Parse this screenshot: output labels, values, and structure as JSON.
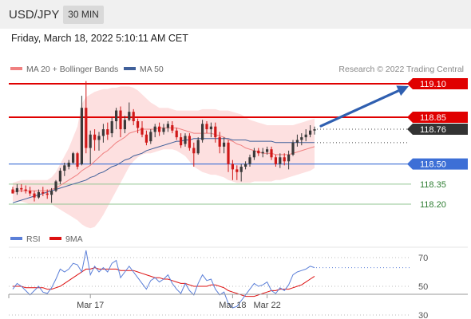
{
  "header": {
    "symbol": "USD/JPY",
    "timeframe": "30 MIN",
    "datetime": "Friday, March 18, 2022 5:10:11 AM CET"
  },
  "legend": {
    "ma20_bb": "MA 20 + Bollinger Bands",
    "ma50": "MA 50",
    "credit": "Research © 2022 Trading Central"
  },
  "colors": {
    "up_candle": "#3a3a3a",
    "down_candle": "#d01818",
    "resistance": "#e00000",
    "support_blue": "#3d6fd6",
    "support_green": "#92c592",
    "ma20": "#f08080",
    "ma50": "#40609a",
    "bands": "#fde0e0",
    "rsi": "#5b7fd8",
    "rsi_ma": "#dd1111",
    "price_box": "#333333",
    "arrow": "#2f5fb0"
  },
  "chart_data": {
    "type": "candlestick",
    "symbol": "USD/JPY",
    "timeframe": "30 MIN",
    "last_price": 118.76,
    "y_range": [
      118.1,
      119.15
    ],
    "levels": [
      {
        "value": 119.1,
        "label": "119.10",
        "kind": "resistance"
      },
      {
        "value": 118.85,
        "label": "118.85",
        "kind": "resistance"
      },
      {
        "value": 118.5,
        "label": "118.50",
        "kind": "pivot"
      },
      {
        "value": 118.35,
        "label": "118.35",
        "kind": "support"
      },
      {
        "value": 118.2,
        "label": "118.20",
        "kind": "support"
      }
    ],
    "x_ticks": [
      {
        "index": 18,
        "label": "Mar 17"
      },
      {
        "index": 51,
        "label": "Mar 18"
      },
      {
        "index": 59,
        "label": "Mar 22"
      }
    ],
    "projection": {
      "from": 118.76,
      "to": 119.1
    },
    "candles": [
      [
        118.31,
        118.33,
        118.28,
        118.28
      ],
      [
        118.29,
        118.35,
        118.27,
        118.32
      ],
      [
        118.32,
        118.35,
        118.29,
        118.31
      ],
      [
        118.31,
        118.34,
        118.28,
        118.3
      ],
      [
        118.3,
        118.33,
        118.26,
        118.28
      ],
      [
        118.28,
        118.3,
        118.22,
        118.25
      ],
      [
        118.25,
        118.31,
        118.24,
        118.29
      ],
      [
        118.29,
        118.33,
        118.26,
        118.28
      ],
      [
        118.28,
        118.31,
        118.24,
        118.27
      ],
      [
        118.27,
        118.32,
        118.21,
        118.3
      ],
      [
        118.3,
        118.38,
        118.29,
        118.37
      ],
      [
        118.37,
        118.47,
        118.35,
        118.45
      ],
      [
        118.45,
        118.51,
        118.41,
        118.49
      ],
      [
        118.48,
        118.53,
        118.46,
        118.51
      ],
      [
        118.51,
        118.59,
        118.5,
        118.58
      ],
      [
        118.58,
        118.59,
        118.46,
        118.48
      ],
      [
        118.5,
        119.01,
        118.49,
        118.92
      ],
      [
        118.92,
        119.12,
        118.58,
        118.62
      ],
      [
        118.62,
        118.75,
        118.5,
        118.72
      ],
      [
        118.72,
        118.76,
        118.6,
        118.68
      ],
      [
        118.68,
        118.74,
        118.6,
        118.71
      ],
      [
        118.71,
        118.8,
        118.66,
        118.76
      ],
      [
        118.76,
        118.81,
        118.68,
        118.72
      ],
      [
        118.73,
        118.85,
        118.7,
        118.82
      ],
      [
        118.82,
        118.92,
        118.76,
        118.9
      ],
      [
        118.9,
        118.93,
        118.7,
        118.76
      ],
      [
        118.76,
        118.86,
        118.73,
        118.83
      ],
      [
        118.83,
        118.96,
        118.82,
        118.89
      ],
      [
        118.89,
        118.91,
        118.79,
        118.82
      ],
      [
        118.82,
        118.84,
        118.73,
        118.77
      ],
      [
        118.77,
        118.82,
        118.7,
        118.72
      ],
      [
        118.72,
        118.75,
        118.64,
        118.66
      ],
      [
        118.67,
        118.76,
        118.65,
        118.74
      ],
      [
        118.74,
        118.8,
        118.7,
        118.78
      ],
      [
        118.78,
        118.81,
        118.71,
        118.74
      ],
      [
        118.74,
        118.8,
        118.72,
        118.77
      ],
      [
        118.77,
        118.82,
        118.74,
        118.8
      ],
      [
        118.79,
        118.82,
        118.73,
        118.75
      ],
      [
        118.75,
        118.77,
        118.68,
        118.7
      ],
      [
        118.7,
        118.73,
        118.62,
        118.64
      ],
      [
        118.65,
        118.73,
        118.63,
        118.71
      ],
      [
        118.71,
        118.73,
        118.6,
        118.62
      ],
      [
        118.62,
        118.66,
        118.48,
        118.58
      ],
      [
        118.58,
        118.7,
        118.57,
        118.68
      ],
      [
        118.68,
        118.83,
        118.66,
        118.8
      ],
      [
        118.8,
        118.82,
        118.73,
        118.76
      ],
      [
        118.76,
        118.81,
        118.7,
        118.78
      ],
      [
        118.78,
        118.81,
        118.66,
        118.7
      ],
      [
        118.7,
        118.74,
        118.58,
        118.63
      ],
      [
        118.63,
        118.7,
        118.58,
        118.66
      ],
      [
        118.66,
        118.68,
        118.44,
        118.5
      ],
      [
        118.5,
        118.53,
        118.38,
        118.46
      ],
      [
        118.46,
        118.49,
        118.38,
        118.44
      ],
      [
        118.44,
        118.5,
        118.37,
        118.48
      ],
      [
        118.48,
        118.52,
        118.46,
        118.5
      ],
      [
        118.5,
        118.57,
        118.48,
        118.55
      ],
      [
        118.55,
        118.62,
        118.53,
        118.6
      ],
      [
        118.6,
        118.62,
        118.56,
        118.58
      ],
      [
        118.58,
        118.62,
        118.55,
        118.59
      ],
      [
        118.59,
        118.63,
        118.57,
        118.61
      ],
      [
        118.61,
        118.63,
        118.53,
        118.55
      ],
      [
        118.55,
        118.57,
        118.48,
        118.5
      ],
      [
        118.5,
        118.58,
        118.47,
        118.55
      ],
      [
        118.55,
        118.58,
        118.49,
        118.52
      ],
      [
        118.52,
        118.6,
        118.46,
        118.57
      ],
      [
        118.57,
        118.68,
        118.56,
        118.66
      ],
      [
        118.66,
        118.72,
        118.63,
        118.68
      ],
      [
        118.68,
        118.73,
        118.64,
        118.7
      ],
      [
        118.7,
        118.76,
        118.67,
        118.72
      ],
      [
        118.72,
        118.79,
        118.7,
        118.75
      ],
      [
        118.75,
        118.78,
        118.72,
        118.76
      ]
    ],
    "ma20": [
      118.29,
      118.3,
      118.3,
      118.3,
      118.3,
      118.3,
      118.3,
      118.3,
      118.3,
      118.31,
      118.32,
      118.34,
      118.36,
      118.38,
      118.4,
      118.42,
      118.45,
      118.47,
      118.49,
      118.52,
      118.55,
      118.58,
      118.6,
      118.63,
      118.66,
      118.68,
      118.7,
      118.73,
      118.74,
      118.75,
      118.76,
      118.76,
      118.76,
      118.76,
      118.77,
      118.77,
      118.77,
      118.77,
      118.77,
      118.76,
      118.75,
      118.74,
      118.73,
      118.73,
      118.73,
      118.73,
      118.73,
      118.72,
      118.71,
      118.7,
      118.68,
      118.67,
      118.65,
      118.64,
      118.62,
      118.61,
      118.6,
      118.59,
      118.58,
      118.58,
      118.58,
      118.57,
      118.57,
      118.57,
      118.57,
      118.58,
      118.59,
      118.6,
      118.61,
      118.62,
      118.63
    ],
    "ma50": [
      118.21,
      118.22,
      118.23,
      118.24,
      118.25,
      118.26,
      118.27,
      118.28,
      118.29,
      118.3,
      118.31,
      118.32,
      118.33,
      118.34,
      118.35,
      118.36,
      118.37,
      118.38,
      118.4,
      118.41,
      118.43,
      118.44,
      118.46,
      118.48,
      118.49,
      118.51,
      118.53,
      118.54,
      118.56,
      118.57,
      118.58,
      118.6,
      118.61,
      118.62,
      118.63,
      118.64,
      118.65,
      118.66,
      118.67,
      118.67,
      118.68,
      118.68,
      118.69,
      118.69,
      118.69,
      118.69,
      118.69,
      118.69,
      118.69,
      118.69,
      118.69,
      118.68,
      118.68,
      118.68,
      118.68,
      118.67,
      118.67,
      118.67,
      118.67,
      118.67,
      118.67,
      118.66,
      118.66,
      118.66,
      118.66,
      118.66,
      118.66,
      118.66,
      118.66,
      118.66,
      118.66
    ],
    "bb_upper": [
      118.36,
      118.37,
      118.38,
      118.38,
      118.38,
      118.38,
      118.38,
      118.38,
      118.38,
      118.4,
      118.44,
      118.5,
      118.56,
      118.62,
      118.7,
      118.78,
      118.95,
      119.0,
      119.02,
      119.04,
      119.05,
      119.06,
      119.06,
      119.07,
      119.07,
      119.08,
      119.08,
      119.08,
      119.07,
      119.05,
      119.02,
      118.99,
      118.96,
      118.94,
      118.92,
      118.92,
      118.92,
      118.91,
      118.9,
      118.9,
      118.9,
      118.9,
      118.9,
      118.9,
      118.91,
      118.91,
      118.91,
      118.91,
      118.9,
      118.9,
      118.9,
      118.89,
      118.88,
      118.87,
      118.85,
      118.83,
      118.82,
      118.81,
      118.8,
      118.79,
      118.79,
      118.79,
      118.79,
      118.79,
      118.79,
      118.79,
      118.8,
      118.81,
      118.82,
      118.83,
      118.84
    ],
    "bb_lower": [
      118.22,
      118.22,
      118.22,
      118.21,
      118.2,
      118.2,
      118.2,
      118.2,
      118.2,
      118.2,
      118.18,
      118.16,
      118.14,
      118.12,
      118.1,
      118.08,
      118.05,
      118.03,
      118.02,
      118.03,
      118.07,
      118.12,
      118.18,
      118.24,
      118.3,
      118.36,
      118.42,
      118.48,
      118.52,
      118.55,
      118.57,
      118.58,
      118.58,
      118.59,
      118.6,
      118.61,
      118.61,
      118.61,
      118.6,
      118.58,
      118.56,
      118.52,
      118.48,
      118.46,
      118.44,
      118.43,
      118.42,
      118.42,
      118.41,
      118.4,
      118.38,
      118.37,
      118.36,
      118.36,
      118.36,
      118.36,
      118.37,
      118.37,
      118.37,
      118.37,
      118.37,
      118.38,
      118.38,
      118.39,
      118.4,
      118.41,
      118.42,
      118.43,
      118.44,
      118.45,
      118.47
    ],
    "rsi_panel": {
      "legend": [
        "RSI",
        "9MA"
      ],
      "levels": [
        70,
        50,
        30
      ],
      "y_range": [
        20,
        80
      ],
      "rsi": [
        48,
        52,
        50,
        47,
        44,
        47,
        50,
        46,
        45,
        49,
        55,
        62,
        60,
        62,
        66,
        65,
        60,
        75,
        58,
        64,
        60,
        63,
        60,
        66,
        68,
        56,
        60,
        64,
        60,
        56,
        52,
        48,
        54,
        56,
        53,
        55,
        58,
        52,
        48,
        45,
        52,
        47,
        44,
        52,
        58,
        54,
        55,
        48,
        44,
        46,
        38,
        35,
        36,
        40,
        44,
        48,
        52,
        50,
        51,
        53,
        47,
        45,
        49,
        47,
        51,
        58,
        60,
        61,
        62,
        64,
        63
      ],
      "rsi_ma": [
        50,
        50,
        50,
        49,
        49,
        49,
        49,
        49,
        48,
        48,
        49,
        50,
        52,
        54,
        56,
        58,
        60,
        62,
        62,
        63,
        62,
        62,
        62,
        62,
        62,
        61,
        61,
        61,
        61,
        60,
        59,
        58,
        57,
        56,
        56,
        55,
        55,
        54,
        53,
        52,
        52,
        51,
        50,
        50,
        50,
        50,
        51,
        51,
        50,
        49,
        47,
        46,
        45,
        44,
        43,
        43,
        43,
        44,
        45,
        46,
        47,
        47,
        48,
        48,
        48,
        49,
        50,
        51,
        53,
        55,
        57
      ]
    }
  }
}
